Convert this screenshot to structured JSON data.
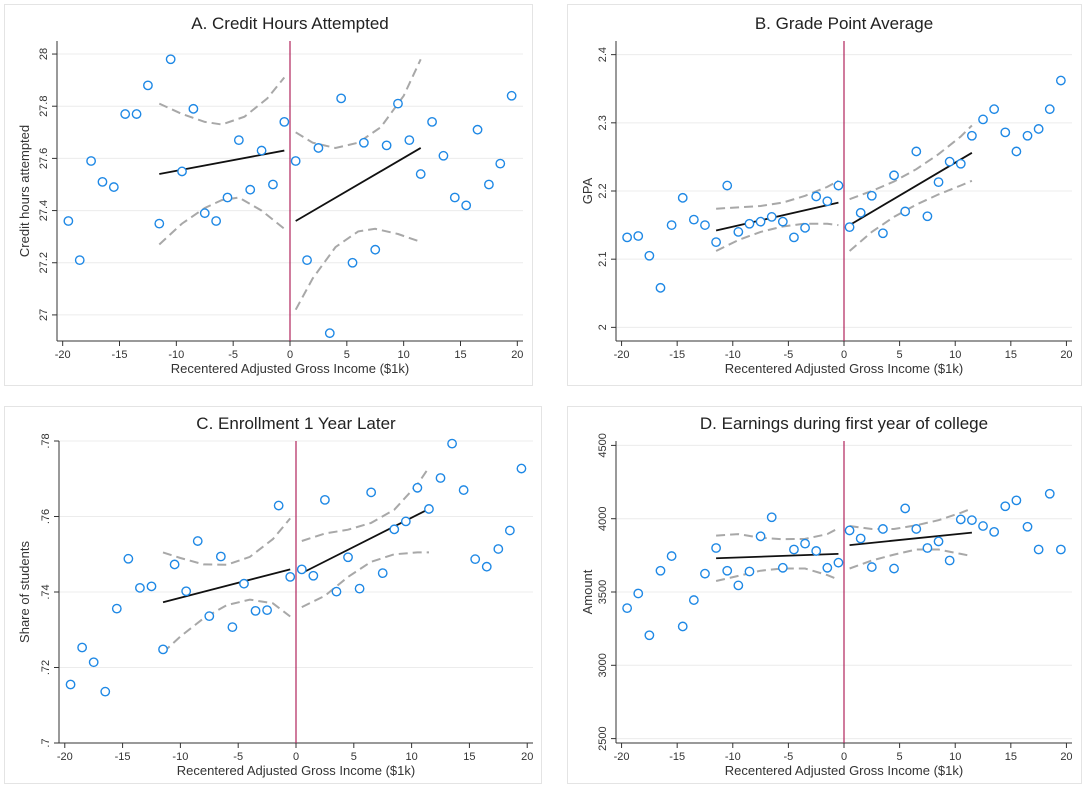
{
  "chart_data": [
    {
      "type": "scatter",
      "title": "A. Credit Hours Attempted",
      "xlabel": "Recentered Adjusted Gross Income ($1k)",
      "ylabel": "Credit hours attempted",
      "xlim": [
        -20.5,
        20.5
      ],
      "ylim": [
        26.9,
        28.05
      ],
      "xticks": [
        "-20",
        "-15",
        "-10",
        "-5",
        "0",
        "5",
        "10",
        "15",
        "20"
      ],
      "yticks": [
        "27",
        "27.2",
        "27.4",
        "27.6",
        "27.8",
        "28"
      ],
      "ytick_values": [
        27,
        27.2,
        27.4,
        27.6,
        27.8,
        28
      ],
      "cutoff": 0,
      "points": [
        [
          -19.5,
          27.36
        ],
        [
          -18.5,
          27.21
        ],
        [
          -17.5,
          27.59
        ],
        [
          -16.5,
          27.51
        ],
        [
          -15.5,
          27.49
        ],
        [
          -14.5,
          27.77
        ],
        [
          -13.5,
          27.77
        ],
        [
          -12.5,
          27.88
        ],
        [
          -11.5,
          27.35
        ],
        [
          -10.5,
          27.98
        ],
        [
          -9.5,
          27.55
        ],
        [
          -8.5,
          27.79
        ],
        [
          -7.5,
          27.39
        ],
        [
          -6.5,
          27.36
        ],
        [
          -5.5,
          27.45
        ],
        [
          -4.5,
          27.67
        ],
        [
          -3.5,
          27.48
        ],
        [
          -2.5,
          27.63
        ],
        [
          -1.5,
          27.5
        ],
        [
          -0.5,
          27.74
        ],
        [
          0.5,
          27.59
        ],
        [
          1.5,
          27.21
        ],
        [
          2.5,
          27.64
        ],
        [
          3.5,
          26.93
        ],
        [
          4.5,
          27.83
        ],
        [
          5.5,
          27.2
        ],
        [
          6.5,
          27.66
        ],
        [
          7.5,
          27.25
        ],
        [
          8.5,
          27.65
        ],
        [
          9.5,
          27.81
        ],
        [
          10.5,
          27.67
        ],
        [
          11.5,
          27.54
        ],
        [
          12.5,
          27.74
        ],
        [
          13.5,
          27.61
        ],
        [
          14.5,
          27.45
        ],
        [
          15.5,
          27.42
        ],
        [
          16.5,
          27.71
        ],
        [
          17.5,
          27.5
        ],
        [
          18.5,
          27.58
        ],
        [
          19.5,
          27.84
        ]
      ],
      "fit_left": [
        [
          -11.5,
          27.54
        ],
        [
          -0.5,
          27.63
        ]
      ],
      "fit_right": [
        [
          0.5,
          27.36
        ],
        [
          11.5,
          27.64
        ]
      ],
      "ci_left_upper": [
        [
          -11.5,
          27.81
        ],
        [
          -9.5,
          27.77
        ],
        [
          -7.5,
          27.74
        ],
        [
          -6,
          27.73
        ],
        [
          -4,
          27.76
        ],
        [
          -2,
          27.83
        ],
        [
          -0.5,
          27.91
        ]
      ],
      "ci_left_lower": [
        [
          -11.5,
          27.27
        ],
        [
          -9.5,
          27.35
        ],
        [
          -7.5,
          27.41
        ],
        [
          -6,
          27.44
        ],
        [
          -4.5,
          27.45
        ],
        [
          -2.5,
          27.4
        ],
        [
          -0.5,
          27.33
        ]
      ],
      "ci_right_upper": [
        [
          0.5,
          27.7
        ],
        [
          2,
          27.66
        ],
        [
          4,
          27.64
        ],
        [
          6,
          27.66
        ],
        [
          8,
          27.72
        ],
        [
          10,
          27.84
        ],
        [
          11.5,
          27.98
        ]
      ],
      "ci_right_lower": [
        [
          0.5,
          27.02
        ],
        [
          2,
          27.14
        ],
        [
          4,
          27.26
        ],
        [
          6,
          27.32
        ],
        [
          7.5,
          27.33
        ],
        [
          9.5,
          27.31
        ],
        [
          11.5,
          27.28
        ]
      ]
    },
    {
      "type": "scatter",
      "title": "B. Grade Point Average",
      "xlabel": "Recentered Adjusted Gross Income ($1k)",
      "ylabel": "GPA",
      "xlim": [
        -20.5,
        20.5
      ],
      "ylim": [
        1.98,
        2.42
      ],
      "xticks": [
        "-20",
        "-15",
        "-10",
        "-5",
        "0",
        "5",
        "10",
        "15",
        "20"
      ],
      "yticks": [
        "2",
        "2.1",
        "2.2",
        "2.3",
        "2.4"
      ],
      "ytick_values": [
        2,
        2.1,
        2.2,
        2.3,
        2.4
      ],
      "cutoff": 0,
      "points": [
        [
          -19.5,
          2.132
        ],
        [
          -18.5,
          2.134
        ],
        [
          -17.5,
          2.105
        ],
        [
          -16.5,
          2.058
        ],
        [
          -15.5,
          2.15
        ],
        [
          -14.5,
          2.19
        ],
        [
          -13.5,
          2.158
        ],
        [
          -12.5,
          2.15
        ],
        [
          -11.5,
          2.125
        ],
        [
          -10.5,
          2.208
        ],
        [
          -9.5,
          2.14
        ],
        [
          -8.5,
          2.152
        ],
        [
          -7.5,
          2.155
        ],
        [
          -6.5,
          2.162
        ],
        [
          -5.5,
          2.155
        ],
        [
          -4.5,
          2.132
        ],
        [
          -3.5,
          2.146
        ],
        [
          -2.5,
          2.192
        ],
        [
          -1.5,
          2.185
        ],
        [
          -0.5,
          2.208
        ],
        [
          0.5,
          2.147
        ],
        [
          1.5,
          2.168
        ],
        [
          2.5,
          2.193
        ],
        [
          3.5,
          2.138
        ],
        [
          4.5,
          2.223
        ],
        [
          5.5,
          2.17
        ],
        [
          6.5,
          2.258
        ],
        [
          7.5,
          2.163
        ],
        [
          8.5,
          2.213
        ],
        [
          9.5,
          2.243
        ],
        [
          10.5,
          2.24
        ],
        [
          11.5,
          2.281
        ],
        [
          12.5,
          2.305
        ],
        [
          13.5,
          2.32
        ],
        [
          14.5,
          2.286
        ],
        [
          15.5,
          2.258
        ],
        [
          16.5,
          2.281
        ],
        [
          17.5,
          2.291
        ],
        [
          18.5,
          2.32
        ],
        [
          19.5,
          2.362
        ]
      ],
      "fit_left": [
        [
          -11.5,
          2.142
        ],
        [
          -0.5,
          2.183
        ]
      ],
      "fit_right": [
        [
          0.5,
          2.15
        ],
        [
          11.5,
          2.256
        ]
      ],
      "ci_left_upper": [
        [
          -11.5,
          2.174
        ],
        [
          -9.5,
          2.176
        ],
        [
          -7.5,
          2.178
        ],
        [
          -5.5,
          2.183
        ],
        [
          -3.5,
          2.193
        ],
        [
          -1.5,
          2.206
        ],
        [
          -0.5,
          2.215
        ]
      ],
      "ci_left_lower": [
        [
          -11.5,
          2.112
        ],
        [
          -9.5,
          2.128
        ],
        [
          -7.5,
          2.14
        ],
        [
          -5.5,
          2.148
        ],
        [
          -3.5,
          2.152
        ],
        [
          -1.5,
          2.152
        ],
        [
          -0.5,
          2.15
        ]
      ],
      "ci_right_upper": [
        [
          0.5,
          2.188
        ],
        [
          2.5,
          2.2
        ],
        [
          4.5,
          2.214
        ],
        [
          6.5,
          2.232
        ],
        [
          8.5,
          2.254
        ],
        [
          10.5,
          2.28
        ],
        [
          11.5,
          2.296
        ]
      ],
      "ci_right_lower": [
        [
          0.5,
          2.112
        ],
        [
          2.5,
          2.14
        ],
        [
          4.5,
          2.162
        ],
        [
          6.5,
          2.18
        ],
        [
          8.5,
          2.195
        ],
        [
          10.5,
          2.208
        ],
        [
          11.5,
          2.215
        ]
      ]
    },
    {
      "type": "scatter",
      "title": "C. Enrollment 1 Year Later",
      "xlabel": "Recentered Adjusted Gross Income ($1k)",
      "ylabel": "Share of students",
      "xlim": [
        -20.5,
        20.5
      ],
      "ylim": [
        0.7,
        0.78
      ],
      "xticks": [
        "-20",
        "-15",
        "-10",
        "-5",
        "0",
        "5",
        "10",
        "15",
        "20"
      ],
      "yticks": [
        ".7",
        ".72",
        ".74",
        ".76",
        ".78"
      ],
      "ytick_values": [
        0.7,
        0.72,
        0.74,
        0.76,
        0.78
      ],
      "cutoff": 0,
      "points": [
        [
          -19.5,
          0.7155
        ],
        [
          -18.5,
          0.7253
        ],
        [
          -17.5,
          0.7214
        ],
        [
          -16.5,
          0.7136
        ],
        [
          -15.5,
          0.7356
        ],
        [
          -14.5,
          0.7488
        ],
        [
          -13.5,
          0.7411
        ],
        [
          -12.5,
          0.7415
        ],
        [
          -11.5,
          0.7248
        ],
        [
          -10.5,
          0.7473
        ],
        [
          -9.5,
          0.7402
        ],
        [
          -8.5,
          0.7535
        ],
        [
          -7.5,
          0.7336
        ],
        [
          -6.5,
          0.7494
        ],
        [
          -5.5,
          0.7307
        ],
        [
          -4.5,
          0.7422
        ],
        [
          -3.5,
          0.735
        ],
        [
          -2.5,
          0.7352
        ],
        [
          -1.5,
          0.7629
        ],
        [
          -0.5,
          0.744
        ],
        [
          0.5,
          0.746
        ],
        [
          1.5,
          0.7443
        ],
        [
          2.5,
          0.7644
        ],
        [
          3.5,
          0.7401
        ],
        [
          4.5,
          0.7492
        ],
        [
          5.5,
          0.7409
        ],
        [
          6.5,
          0.7664
        ],
        [
          7.5,
          0.745
        ],
        [
          8.5,
          0.7566
        ],
        [
          9.5,
          0.7587
        ],
        [
          10.5,
          0.7676
        ],
        [
          11.5,
          0.762
        ],
        [
          12.5,
          0.7702
        ],
        [
          13.5,
          0.7793
        ],
        [
          14.5,
          0.767
        ],
        [
          15.5,
          0.7487
        ],
        [
          16.5,
          0.7467
        ],
        [
          17.5,
          0.7514
        ],
        [
          18.5,
          0.7563
        ],
        [
          19.5,
          0.7727
        ]
      ],
      "fit_left": [
        [
          -11.5,
          0.7373
        ],
        [
          -0.5,
          0.746
        ]
      ],
      "fit_right": [
        [
          0.5,
          0.745
        ],
        [
          11.5,
          0.762
        ]
      ],
      "ci_left_upper": [
        [
          -11.5,
          0.7505
        ],
        [
          -10,
          0.749
        ],
        [
          -8,
          0.7473
        ],
        [
          -6,
          0.7472
        ],
        [
          -4,
          0.7493
        ],
        [
          -2,
          0.754
        ],
        [
          -0.5,
          0.7595
        ]
      ],
      "ci_left_lower": [
        [
          -11.5,
          0.724
        ],
        [
          -10,
          0.7282
        ],
        [
          -8,
          0.733
        ],
        [
          -6,
          0.7365
        ],
        [
          -4,
          0.738
        ],
        [
          -2,
          0.737
        ],
        [
          -0.5,
          0.7335
        ]
      ],
      "ci_right_upper": [
        [
          0.5,
          0.7535
        ],
        [
          2.5,
          0.7555
        ],
        [
          4.5,
          0.7565
        ],
        [
          6.5,
          0.7583
        ],
        [
          8.5,
          0.7618
        ],
        [
          10.5,
          0.7685
        ],
        [
          11.5,
          0.773
        ]
      ],
      "ci_right_lower": [
        [
          0.5,
          0.736
        ],
        [
          2.5,
          0.739
        ],
        [
          4.5,
          0.744
        ],
        [
          6.5,
          0.748
        ],
        [
          8.5,
          0.75
        ],
        [
          10.5,
          0.7505
        ],
        [
          11.5,
          0.7505
        ]
      ]
    },
    {
      "type": "scatter",
      "title": "D. Earnings during first year of college",
      "xlabel": "Recentered Adjusted Gross Income ($1k)",
      "ylabel": "Amount",
      "xlim": [
        -20.5,
        20.5
      ],
      "ylim": [
        2470,
        4530
      ],
      "xticks": [
        "-20",
        "-15",
        "-10",
        "-5",
        "0",
        "5",
        "10",
        "15",
        "20"
      ],
      "yticks": [
        "2500",
        "3000",
        "3500",
        "4000",
        "4500"
      ],
      "ytick_values": [
        2500,
        3000,
        3500,
        4000,
        4500
      ],
      "cutoff": 0,
      "points": [
        [
          -19.5,
          3390
        ],
        [
          -18.5,
          3490
        ],
        [
          -17.5,
          3205
        ],
        [
          -16.5,
          3645
        ],
        [
          -15.5,
          3745
        ],
        [
          -14.5,
          3265
        ],
        [
          -13.5,
          3445
        ],
        [
          -12.5,
          3625
        ],
        [
          -11.5,
          3800
        ],
        [
          -10.5,
          3645
        ],
        [
          -9.5,
          3545
        ],
        [
          -8.5,
          3640
        ],
        [
          -7.5,
          3880
        ],
        [
          -6.5,
          4010
        ],
        [
          -5.5,
          3665
        ],
        [
          -4.5,
          3790
        ],
        [
          -3.5,
          3830
        ],
        [
          -2.5,
          3780
        ],
        [
          -1.5,
          3665
        ],
        [
          -0.5,
          3700
        ],
        [
          0.5,
          3920
        ],
        [
          1.5,
          3865
        ],
        [
          2.5,
          3670
        ],
        [
          3.5,
          3930
        ],
        [
          4.5,
          3660
        ],
        [
          5.5,
          4070
        ],
        [
          6.5,
          3930
        ],
        [
          7.5,
          3800
        ],
        [
          8.5,
          3845
        ],
        [
          9.5,
          3715
        ],
        [
          10.5,
          3995
        ],
        [
          11.5,
          3990
        ],
        [
          12.5,
          3950
        ],
        [
          13.5,
          3910
        ],
        [
          14.5,
          4085
        ],
        [
          15.5,
          4125
        ],
        [
          16.5,
          3945
        ],
        [
          17.5,
          3790
        ],
        [
          18.5,
          4170
        ],
        [
          19.5,
          3790
        ]
      ],
      "fit_left": [
        [
          -11.5,
          3730
        ],
        [
          -0.5,
          3760
        ]
      ],
      "fit_right": [
        [
          0.5,
          3820
        ],
        [
          11.5,
          3905
        ]
      ],
      "ci_left_upper": [
        [
          -11.5,
          3885
        ],
        [
          -9.5,
          3895
        ],
        [
          -7.5,
          3870
        ],
        [
          -5.5,
          3860
        ],
        [
          -3.5,
          3862
        ],
        [
          -1.5,
          3895
        ],
        [
          -0.5,
          3935
        ]
      ],
      "ci_left_lower": [
        [
          -11.5,
          3575
        ],
        [
          -9.5,
          3610
        ],
        [
          -7.5,
          3645
        ],
        [
          -5.5,
          3660
        ],
        [
          -3.5,
          3660
        ],
        [
          -1.5,
          3615
        ],
        [
          -0.5,
          3585
        ]
      ],
      "ci_right_upper": [
        [
          0.5,
          3950
        ],
        [
          2.5,
          3930
        ],
        [
          4.5,
          3930
        ],
        [
          6.5,
          3955
        ],
        [
          8.5,
          3990
        ],
        [
          10.5,
          4040
        ],
        [
          11.5,
          4070
        ]
      ],
      "ci_right_lower": [
        [
          0.5,
          3660
        ],
        [
          2.5,
          3715
        ],
        [
          4.5,
          3755
        ],
        [
          6.5,
          3790
        ],
        [
          8.5,
          3790
        ],
        [
          10.5,
          3760
        ],
        [
          11.5,
          3745
        ]
      ]
    }
  ]
}
